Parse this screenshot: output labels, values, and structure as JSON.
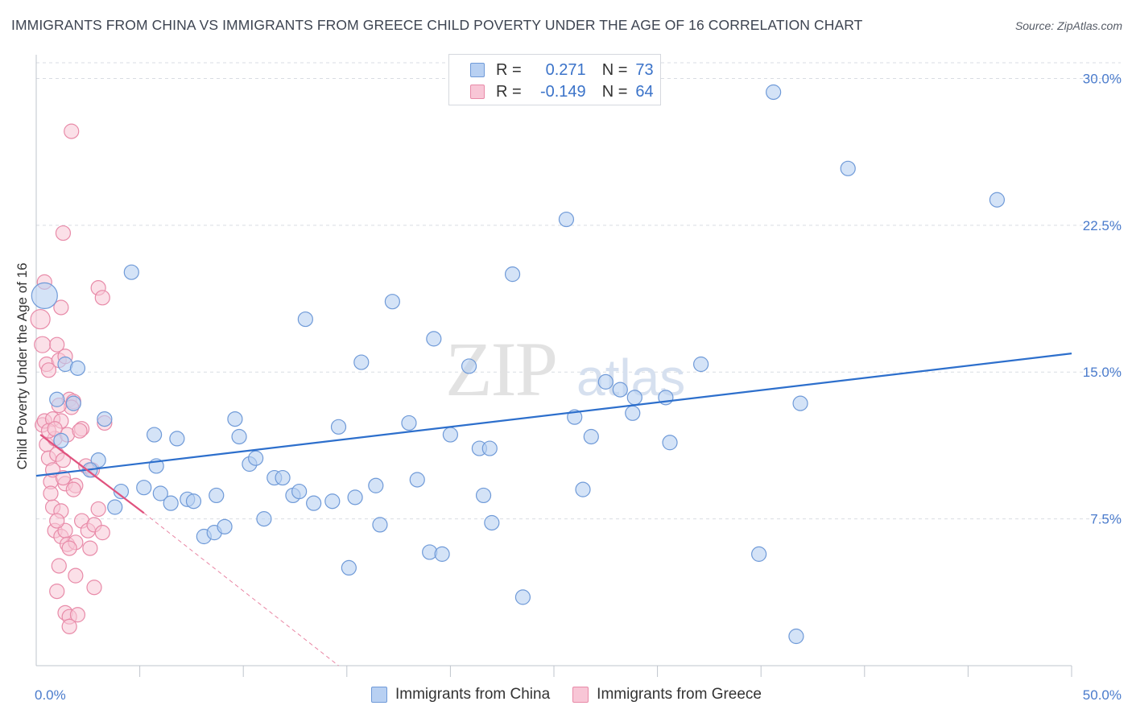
{
  "title": "IMMIGRANTS FROM CHINA VS IMMIGRANTS FROM GREECE CHILD POVERTY UNDER THE AGE OF 16 CORRELATION CHART",
  "source": "Source: ZipAtlas.com",
  "watermark": {
    "zip": "ZIP",
    "atlas": "atlas"
  },
  "legend": {
    "r_label": "R =",
    "n_label": "N =",
    "rows": [
      {
        "name": "china",
        "r": "0.271",
        "n": "73"
      },
      {
        "name": "greece",
        "r": "-0.149",
        "n": "64"
      }
    ]
  },
  "bottom_legend": {
    "china": "Immigrants from China",
    "greece": "Immigrants from Greece"
  },
  "colors": {
    "china_fill": "#b8d0f2",
    "china_stroke": "#6f9ad8",
    "china_line": "#2d6fcc",
    "greece_fill": "#f8c6d6",
    "greece_stroke": "#e88aa8",
    "greece_line": "#e0527e",
    "axis_text": "#4a7bcc",
    "grid": "#d9dde3"
  },
  "chart_data": {
    "type": "scatter",
    "title": "IMMIGRANTS FROM CHINA VS IMMIGRANTS FROM GREECE CHILD POVERTY UNDER THE AGE OF 16 CORRELATION CHART",
    "xlabel": "",
    "ylabel": "Child Poverty Under the Age of 16",
    "xlim": [
      0,
      50
    ],
    "ylim": [
      0,
      30.8
    ],
    "x_tick_labels": [
      {
        "value": 0,
        "label": "0.0%"
      },
      {
        "value": 50,
        "label": "50.0%"
      }
    ],
    "y_ticks": [
      {
        "value": 7.5,
        "label": "7.5%"
      },
      {
        "value": 15,
        "label": "15.0%"
      },
      {
        "value": 22.5,
        "label": "22.5%"
      },
      {
        "value": 30,
        "label": "30.0%"
      }
    ],
    "x_minor_ticks": [
      5,
      10,
      15,
      20,
      25,
      30,
      35,
      40,
      45,
      50
    ],
    "series": [
      {
        "name": "Immigrants from China",
        "trend": {
          "x": [
            0,
            50
          ],
          "y": [
            9.7,
            15.95
          ]
        },
        "points": [
          [
            0.4,
            18.9,
            16
          ],
          [
            1.4,
            15.4,
            9
          ],
          [
            2.0,
            15.2,
            9
          ],
          [
            1.0,
            13.6,
            9
          ],
          [
            1.8,
            13.4,
            9
          ],
          [
            3.3,
            12.6,
            9
          ],
          [
            1.2,
            11.5,
            9
          ],
          [
            3.0,
            10.5,
            9
          ],
          [
            2.6,
            10.0,
            9
          ],
          [
            3.8,
            8.1,
            9
          ],
          [
            4.1,
            8.9,
            9
          ],
          [
            4.6,
            20.1,
            9
          ],
          [
            5.2,
            9.1,
            9
          ],
          [
            5.7,
            11.8,
            9
          ],
          [
            5.8,
            10.2,
            9
          ],
          [
            6.0,
            8.8,
            9
          ],
          [
            6.5,
            8.3,
            9
          ],
          [
            6.8,
            11.6,
            9
          ],
          [
            7.3,
            8.5,
            9
          ],
          [
            7.6,
            8.4,
            9
          ],
          [
            8.1,
            6.6,
            9
          ],
          [
            8.6,
            6.8,
            9
          ],
          [
            8.7,
            8.7,
            9
          ],
          [
            9.1,
            7.1,
            9
          ],
          [
            9.6,
            12.6,
            9
          ],
          [
            9.8,
            11.7,
            9
          ],
          [
            10.3,
            10.3,
            9
          ],
          [
            10.6,
            10.6,
            9
          ],
          [
            11.0,
            7.5,
            9
          ],
          [
            11.5,
            9.6,
            9
          ],
          [
            11.9,
            9.6,
            9
          ],
          [
            12.4,
            8.7,
            9
          ],
          [
            12.7,
            8.9,
            9
          ],
          [
            13.0,
            17.7,
            9
          ],
          [
            13.4,
            8.3,
            9
          ],
          [
            14.3,
            8.4,
            9
          ],
          [
            14.6,
            12.2,
            9
          ],
          [
            15.1,
            5.0,
            9
          ],
          [
            15.4,
            8.6,
            9
          ],
          [
            15.7,
            15.5,
            9
          ],
          [
            16.4,
            9.2,
            9
          ],
          [
            16.6,
            7.2,
            9
          ],
          [
            17.2,
            18.6,
            9
          ],
          [
            18.0,
            12.4,
            9
          ],
          [
            18.4,
            9.5,
            9
          ],
          [
            19.0,
            5.8,
            9
          ],
          [
            19.2,
            16.7,
            9
          ],
          [
            19.6,
            5.7,
            9
          ],
          [
            20.0,
            11.8,
            9
          ],
          [
            20.9,
            15.3,
            9
          ],
          [
            21.4,
            11.1,
            9
          ],
          [
            21.9,
            11.1,
            9
          ],
          [
            21.6,
            8.7,
            9
          ],
          [
            22.0,
            7.3,
            9
          ],
          [
            23.0,
            20.0,
            9
          ],
          [
            23.5,
            3.5,
            9
          ],
          [
            25.6,
            22.8,
            9
          ],
          [
            26.0,
            12.7,
            9
          ],
          [
            26.4,
            9.0,
            9
          ],
          [
            26.8,
            11.7,
            9
          ],
          [
            27.5,
            14.5,
            9
          ],
          [
            28.2,
            14.1,
            9
          ],
          [
            28.8,
            12.9,
            9
          ],
          [
            28.9,
            13.7,
            9
          ],
          [
            30.4,
            13.7,
            9
          ],
          [
            30.6,
            11.4,
            9
          ],
          [
            32.1,
            15.4,
            9
          ],
          [
            34.9,
            5.7,
            9
          ],
          [
            35.6,
            29.3,
            9
          ],
          [
            36.7,
            1.5,
            9
          ],
          [
            36.9,
            13.4,
            9
          ],
          [
            39.2,
            25.4,
            9
          ],
          [
            46.4,
            23.8,
            9
          ]
        ]
      },
      {
        "name": "Immigrants from Greece",
        "trend": {
          "x": [
            0.2,
            5.2
          ],
          "y": [
            11.8,
            7.8
          ]
        },
        "trend_extension": {
          "x": [
            5.2,
            14.6
          ],
          "y": [
            7.8,
            0
          ]
        },
        "points": [
          [
            0.2,
            17.7,
            12
          ],
          [
            0.3,
            16.4,
            10
          ],
          [
            0.4,
            19.6,
            9
          ],
          [
            0.5,
            15.4,
            9
          ],
          [
            0.3,
            12.3,
            9
          ],
          [
            0.5,
            11.3,
            9
          ],
          [
            0.6,
            10.6,
            9
          ],
          [
            0.7,
            9.4,
            9
          ],
          [
            0.4,
            12.5,
            9
          ],
          [
            0.8,
            12.6,
            9
          ],
          [
            0.9,
            11.6,
            9
          ],
          [
            0.8,
            8.1,
            9
          ],
          [
            0.9,
            6.9,
            9
          ],
          [
            1.0,
            16.4,
            9
          ],
          [
            1.1,
            15.6,
            9
          ],
          [
            1.2,
            12.5,
            9
          ],
          [
            1.0,
            10.8,
            9
          ],
          [
            1.3,
            10.5,
            9
          ],
          [
            1.2,
            7.9,
            9
          ],
          [
            1.2,
            6.6,
            9
          ],
          [
            1.1,
            5.1,
            9
          ],
          [
            1.0,
            3.8,
            9
          ],
          [
            1.3,
            22.1,
            9
          ],
          [
            1.2,
            18.3,
            9
          ],
          [
            1.4,
            15.8,
            9
          ],
          [
            1.5,
            11.8,
            9
          ],
          [
            1.4,
            9.3,
            9
          ],
          [
            1.4,
            6.9,
            9
          ],
          [
            1.5,
            6.2,
            9
          ],
          [
            1.4,
            2.7,
            9
          ],
          [
            1.6,
            13.6,
            9
          ],
          [
            1.6,
            2.5,
            9
          ],
          [
            1.6,
            2.0,
            9
          ],
          [
            1.7,
            27.3,
            9
          ],
          [
            1.8,
            13.5,
            9
          ],
          [
            1.9,
            9.2,
            9
          ],
          [
            1.9,
            6.3,
            9
          ],
          [
            1.9,
            4.6,
            9
          ],
          [
            2.0,
            2.6,
            9
          ],
          [
            2.2,
            12.1,
            9
          ],
          [
            2.2,
            7.4,
            9
          ],
          [
            2.4,
            10.2,
            9
          ],
          [
            2.5,
            6.9,
            9
          ],
          [
            2.7,
            10.0,
            9
          ],
          [
            2.8,
            7.2,
            9
          ],
          [
            2.8,
            4.0,
            9
          ],
          [
            3.0,
            8.0,
            9
          ],
          [
            3.0,
            19.3,
            9
          ],
          [
            3.2,
            18.8,
            9
          ],
          [
            3.2,
            6.8,
            9
          ],
          [
            3.3,
            12.4,
            9
          ],
          [
            0.6,
            15.1,
            9
          ],
          [
            1.7,
            13.2,
            9
          ],
          [
            0.8,
            10.0,
            9
          ],
          [
            1.0,
            7.4,
            9
          ],
          [
            1.3,
            9.6,
            9
          ],
          [
            1.8,
            9.0,
            9
          ],
          [
            0.6,
            12.0,
            9
          ],
          [
            0.9,
            12.1,
            9
          ],
          [
            2.6,
            6.0,
            9
          ],
          [
            2.1,
            12.0,
            9
          ],
          [
            1.6,
            6.0,
            9
          ],
          [
            1.1,
            13.3,
            9
          ],
          [
            0.7,
            8.8,
            9
          ]
        ]
      }
    ]
  }
}
